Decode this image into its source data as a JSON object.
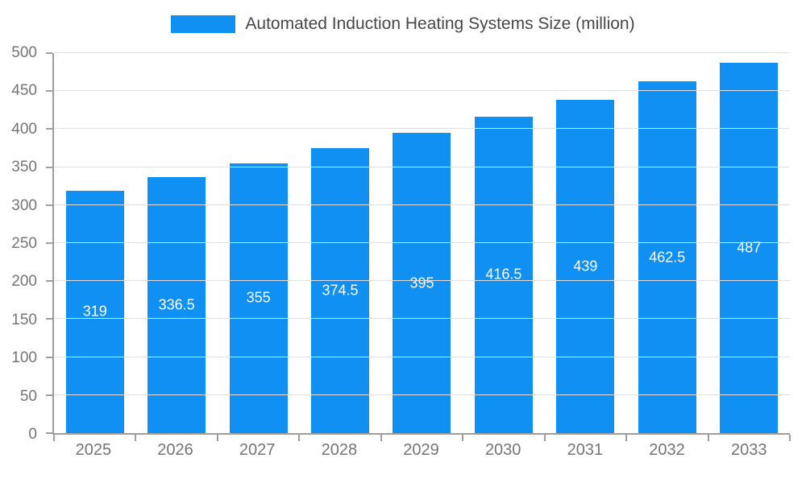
{
  "chart_data": {
    "type": "bar",
    "title": "Automated Induction Heating Systems Size (million)",
    "categories": [
      "2025",
      "2026",
      "2027",
      "2028",
      "2029",
      "2030",
      "2031",
      "2032",
      "2033"
    ],
    "values": [
      319,
      336.5,
      355,
      374.5,
      395,
      416.5,
      439,
      462.5,
      487
    ],
    "xlabel": "",
    "ylabel": "",
    "ylim": [
      0,
      500
    ],
    "ytick_step": 50,
    "grid": true,
    "legend_position": "top",
    "colors": {
      "bar": "#0f90f2",
      "bar_label_text": "#ffffff",
      "axis_line": "#9e9e9e",
      "gridline": "#e0e0e0",
      "tick_text": "#757575",
      "legend_text": "#474747",
      "background": "#ffffff"
    }
  }
}
